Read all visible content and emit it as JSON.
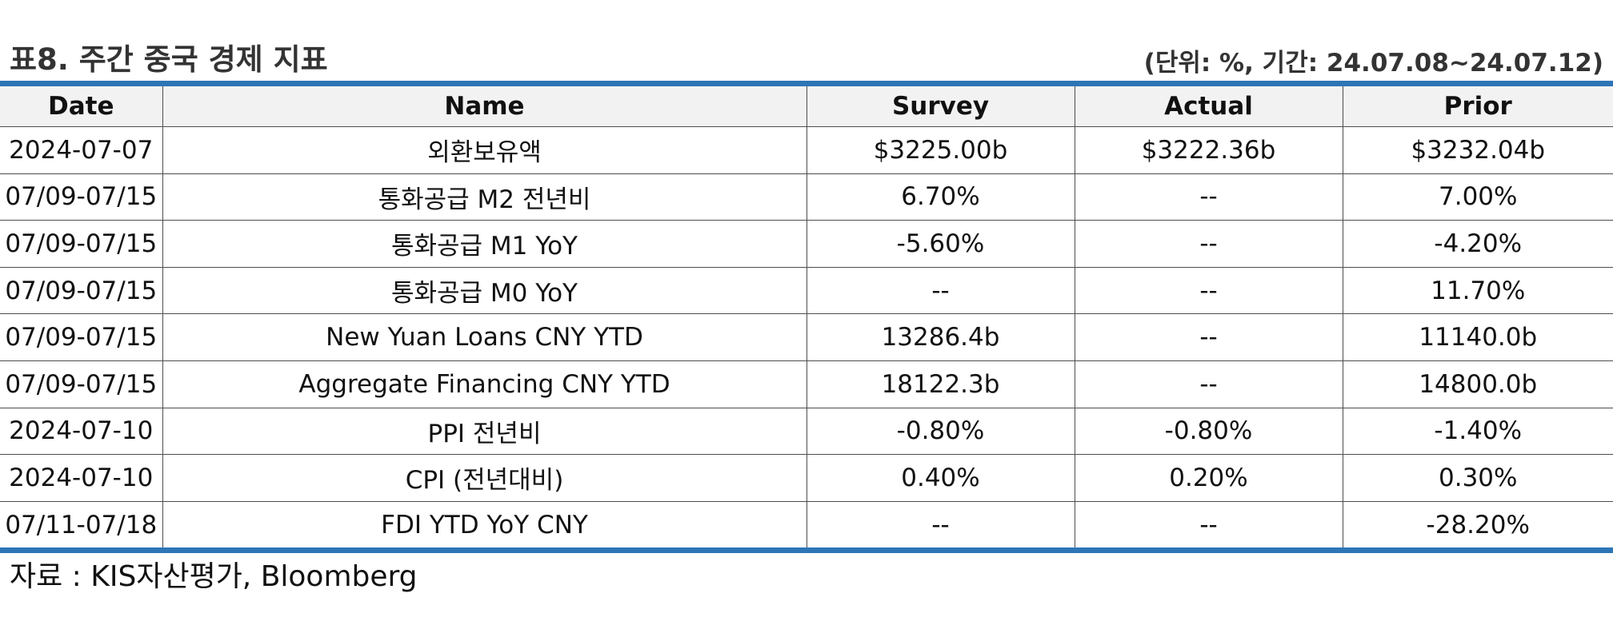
{
  "title": "표8. 주간 중국 경제 지표",
  "unit_note": "(단위: %, 기간: 24.07.08~24.07.12)",
  "table": {
    "headers": [
      "Date",
      "Name",
      "Survey",
      "Actual",
      "Prior"
    ],
    "rows": [
      [
        "2024-07-07",
        "외환보유액",
        "$3225.00b",
        "$3222.36b",
        "$3232.04b"
      ],
      [
        "07/09-07/15",
        "통화공급 M2 전년비",
        "6.70%",
        "--",
        "7.00%"
      ],
      [
        "07/09-07/15",
        "통화공급 M1 YoY",
        "-5.60%",
        "--",
        "-4.20%"
      ],
      [
        "07/09-07/15",
        "통화공급 M0 YoY",
        "--",
        "--",
        "11.70%"
      ],
      [
        "07/09-07/15",
        "New Yuan Loans CNY YTD",
        "13286.4b",
        "--",
        "11140.0b"
      ],
      [
        "07/09-07/15",
        "Aggregate Financing CNY YTD",
        "18122.3b",
        "--",
        "14800.0b"
      ],
      [
        "2024-07-10",
        "PPI 전년비",
        "-0.80%",
        "-0.80%",
        "-1.40%"
      ],
      [
        "2024-07-10",
        "CPI (전년대비)",
        "0.40%",
        "0.20%",
        "0.30%"
      ],
      [
        "07/11-07/18",
        "FDI YTD YoY CNY",
        "--",
        "--",
        "-28.20%"
      ]
    ]
  },
  "source": "자료 : KIS자산평가, Bloomberg",
  "colors": {
    "accent_border": "#2e75b6",
    "header_bg": "#f2f2f2"
  }
}
